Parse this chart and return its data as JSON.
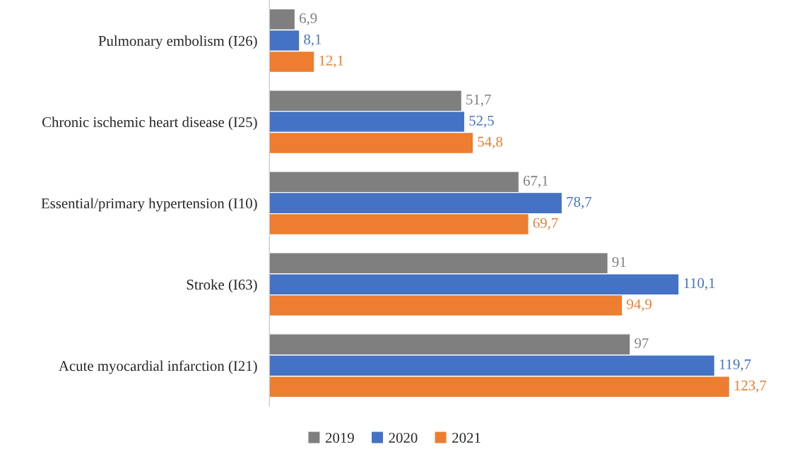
{
  "chart_data": {
    "type": "bar",
    "orientation": "horizontal",
    "legend": "bottom",
    "grid": false,
    "categories": [
      "Pulmonary embolism (I26)",
      "Chronic ischemic heart disease (I25)",
      "Essential/primary hypertension (I10)",
      "Stroke (I63)",
      "Acute myocardial infarction (I21)"
    ],
    "series": [
      {
        "name": "2019",
        "color": "#7f7f7f",
        "values": [
          6.9,
          51.7,
          67.1,
          91,
          97
        ],
        "value_labels": [
          "6,9",
          "51,7",
          "67,1",
          "91",
          "97"
        ]
      },
      {
        "name": "2020",
        "color": "#4472c4",
        "values": [
          8.1,
          52.5,
          78.7,
          110.1,
          119.7
        ],
        "value_labels": [
          "8,1",
          "52,5",
          "78,7",
          "110,1",
          "119,7"
        ]
      },
      {
        "name": "2021",
        "color": "#ed7d31",
        "values": [
          12.1,
          54.8,
          69.7,
          94.9,
          123.7
        ],
        "value_labels": [
          "12,1",
          "54,8",
          "69,7",
          "94,9",
          "123,7"
        ]
      }
    ]
  }
}
